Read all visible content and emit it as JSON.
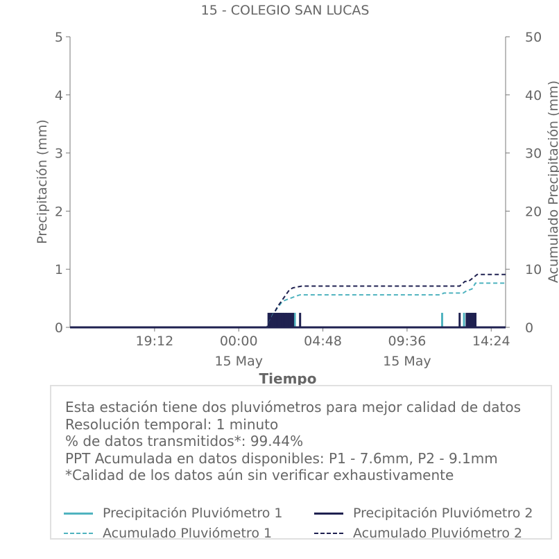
{
  "chart_data": {
    "type": "line",
    "title": "15 - COLEGIO SAN LUCAS",
    "xlabel": "Tiempo",
    "ylabel": "Precipitación (mm)",
    "ylabel_right": "Acumulado Precipitación (mm)",
    "ylim": [
      0,
      5
    ],
    "ylim_right": [
      0,
      50
    ],
    "yticks": [
      "0",
      "1",
      "2",
      "3",
      "4",
      "5"
    ],
    "yticks_right": [
      "0",
      "10",
      "20",
      "30",
      "40",
      "50"
    ],
    "xlim_hours": [
      -9.62,
      15.22
    ],
    "xticks": [
      {
        "hour": -4.8,
        "label": "19:12",
        "sublabel": ""
      },
      {
        "hour": 0,
        "label": "00:00",
        "sublabel": "15 May"
      },
      {
        "hour": 4.8,
        "label": "04:48",
        "sublabel": ""
      },
      {
        "hour": 9.6,
        "label": "09:36",
        "sublabel": "15 May"
      },
      {
        "hour": 14.4,
        "label": "14:24",
        "sublabel": ""
      }
    ],
    "grid": false,
    "series": [
      {
        "name": "Precipitación Pluviómetro 1",
        "axis": "left",
        "style": "solid",
        "color": "#4fb3bf",
        "bars": [
          {
            "hour": 1.8,
            "value": 0.25
          },
          {
            "hour": 1.9,
            "value": 0.25
          },
          {
            "hour": 2.0,
            "value": 0.25
          },
          {
            "hour": 2.1,
            "value": 0.25
          },
          {
            "hour": 2.2,
            "value": 0.25
          },
          {
            "hour": 2.3,
            "value": 0.25
          },
          {
            "hour": 2.4,
            "value": 0.25
          },
          {
            "hour": 2.55,
            "value": 0.25
          },
          {
            "hour": 2.7,
            "value": 0.25
          },
          {
            "hour": 3.2,
            "value": 0.25
          },
          {
            "hour": 11.6,
            "value": 0.25
          },
          {
            "hour": 12.85,
            "value": 0.25
          },
          {
            "hour": 13.2,
            "value": 0.25
          },
          {
            "hour": 13.3,
            "value": 0.25
          },
          {
            "hour": 13.4,
            "value": 0.25
          }
        ]
      },
      {
        "name": "Precipitación Pluviómetro 2",
        "axis": "left",
        "style": "solid",
        "color": "#1f2150",
        "bars": [
          {
            "hour": 1.7,
            "value": 0.25
          },
          {
            "hour": 1.8,
            "value": 0.25
          },
          {
            "hour": 1.9,
            "value": 0.25
          },
          {
            "hour": 2.0,
            "value": 0.25
          },
          {
            "hour": 2.1,
            "value": 0.25
          },
          {
            "hour": 2.2,
            "value": 0.25
          },
          {
            "hour": 2.3,
            "value": 0.25
          },
          {
            "hour": 2.4,
            "value": 0.25
          },
          {
            "hour": 2.5,
            "value": 0.25
          },
          {
            "hour": 2.6,
            "value": 0.25
          },
          {
            "hour": 2.7,
            "value": 0.25
          },
          {
            "hour": 2.8,
            "value": 0.25
          },
          {
            "hour": 2.9,
            "value": 0.25
          },
          {
            "hour": 3.0,
            "value": 0.25
          },
          {
            "hour": 3.1,
            "value": 0.25
          },
          {
            "hour": 3.5,
            "value": 0.25
          },
          {
            "hour": 12.6,
            "value": 0.25
          },
          {
            "hour": 13.0,
            "value": 0.25
          },
          {
            "hour": 13.1,
            "value": 0.25
          },
          {
            "hour": 13.2,
            "value": 0.25
          },
          {
            "hour": 13.3,
            "value": 0.25
          },
          {
            "hour": 13.4,
            "value": 0.25
          },
          {
            "hour": 13.5,
            "value": 0.25
          }
        ]
      },
      {
        "name": "Acumulado Pluviómetro 1",
        "axis": "right",
        "style": "dashed",
        "color": "#4fb3bf",
        "x": [
          -9.62,
          1.6,
          2.0,
          2.5,
          3.2,
          3.5,
          11.5,
          11.7,
          12.8,
          13.0,
          13.3,
          13.5,
          15.22
        ],
        "y": [
          0,
          0,
          2.5,
          4.5,
          5.3,
          5.6,
          5.6,
          5.9,
          5.9,
          6.3,
          6.6,
          7.6,
          7.6
        ]
      },
      {
        "name": "Acumulado Pluviómetro 2",
        "axis": "right",
        "style": "dashed",
        "color": "#1f2150",
        "x": [
          -9.62,
          1.6,
          2.2,
          2.9,
          3.1,
          3.6,
          12.6,
          12.9,
          13.1,
          13.4,
          13.6,
          15.22
        ],
        "y": [
          0,
          0,
          3.5,
          6.5,
          6.8,
          7.1,
          7.1,
          7.9,
          7.9,
          8.6,
          9.1,
          9.1
        ]
      }
    ]
  },
  "info": {
    "lines": [
      "Esta estación tiene dos pluviómetros para mejor calidad de datos",
      "Resolución temporal: 1 minuto",
      "% de datos transmitidos*: 99.44%",
      "PPT Acumulada en datos disponibles: P1 - 7.6mm, P2 - 9.1mm",
      "*Calidad de los datos aún sin verificar exhaustivamente"
    ]
  },
  "legend": [
    {
      "label": "Precipitación Pluviómetro 1",
      "color": "#4fb3bf",
      "style": "solid"
    },
    {
      "label": "Precipitación Pluviómetro 2",
      "color": "#1f2150",
      "style": "solid"
    },
    {
      "label": "Acumulado Pluviómetro 1",
      "color": "#4fb3bf",
      "style": "dashed"
    },
    {
      "label": "Acumulado Pluviómetro 2",
      "color": "#1f2150",
      "style": "dashed"
    }
  ]
}
